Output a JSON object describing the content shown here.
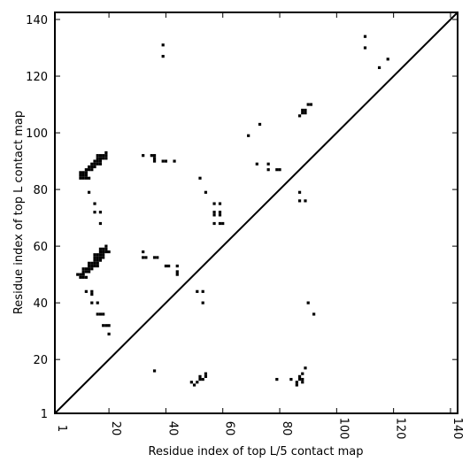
{
  "chart_data": {
    "type": "scatter",
    "title": "",
    "xlabel": "Residue index of top L/5 contact map",
    "ylabel": "Residue index of top L contact map",
    "xlim": [
      1,
      142.5
    ],
    "ylim": [
      1,
      142.5
    ],
    "x_ticks": [
      1,
      20,
      40,
      60,
      80,
      100,
      120,
      140
    ],
    "x_tick_labels": [
      "1",
      "20",
      "40",
      "60",
      "80",
      "100",
      "120",
      "140"
    ],
    "y_ticks": [
      1,
      20,
      40,
      60,
      80,
      100,
      120,
      140
    ],
    "y_tick_labels": [
      "1",
      "20",
      "40",
      "60",
      "80",
      "100",
      "120",
      "140"
    ],
    "grid": false,
    "diagonal": true,
    "marker": "square",
    "marker_color": "#000000",
    "series": [
      {
        "name": "",
        "points": [
          [
            10,
            84
          ],
          [
            10,
            85
          ],
          [
            10,
            86
          ],
          [
            11,
            84
          ],
          [
            11,
            85
          ],
          [
            11,
            86
          ],
          [
            12,
            84
          ],
          [
            12,
            85
          ],
          [
            12,
            86
          ],
          [
            13,
            84
          ],
          [
            12,
            87
          ],
          [
            13,
            87
          ],
          [
            13,
            88
          ],
          [
            14,
            87
          ],
          [
            14,
            88
          ],
          [
            14,
            89
          ],
          [
            15,
            88
          ],
          [
            15,
            89
          ],
          [
            15,
            90
          ],
          [
            16,
            89
          ],
          [
            16,
            90
          ],
          [
            16,
            91
          ],
          [
            16,
            92
          ],
          [
            17,
            89
          ],
          [
            17,
            90
          ],
          [
            17,
            91
          ],
          [
            17,
            92
          ],
          [
            18,
            91
          ],
          [
            18,
            92
          ],
          [
            19,
            91
          ],
          [
            19,
            92
          ],
          [
            19,
            93
          ],
          [
            13,
            79
          ],
          [
            15,
            75
          ],
          [
            15,
            72
          ],
          [
            17,
            72
          ],
          [
            17,
            68
          ],
          [
            9,
            50
          ],
          [
            10,
            49
          ],
          [
            10,
            50
          ],
          [
            11,
            49
          ],
          [
            11,
            50
          ],
          [
            11,
            51
          ],
          [
            11,
            52
          ],
          [
            12,
            49
          ],
          [
            12,
            51
          ],
          [
            12,
            52
          ],
          [
            13,
            51
          ],
          [
            13,
            52
          ],
          [
            13,
            53
          ],
          [
            13,
            54
          ],
          [
            14,
            52
          ],
          [
            14,
            53
          ],
          [
            14,
            54
          ],
          [
            15,
            53
          ],
          [
            15,
            54
          ],
          [
            15,
            55
          ],
          [
            15,
            56
          ],
          [
            15,
            57
          ],
          [
            16,
            53
          ],
          [
            16,
            54
          ],
          [
            16,
            55
          ],
          [
            16,
            56
          ],
          [
            16,
            57
          ],
          [
            17,
            55
          ],
          [
            17,
            56
          ],
          [
            17,
            57
          ],
          [
            17,
            58
          ],
          [
            17,
            59
          ],
          [
            18,
            56
          ],
          [
            18,
            57
          ],
          [
            18,
            58
          ],
          [
            18,
            59
          ],
          [
            19,
            58
          ],
          [
            19,
            59
          ],
          [
            19,
            60
          ],
          [
            20,
            58
          ],
          [
            12,
            44
          ],
          [
            14,
            43
          ],
          [
            14,
            44
          ],
          [
            14,
            40
          ],
          [
            16,
            40
          ],
          [
            16,
            36
          ],
          [
            17,
            36
          ],
          [
            18,
            36
          ],
          [
            18,
            32
          ],
          [
            19,
            32
          ],
          [
            20,
            32
          ],
          [
            20,
            29
          ],
          [
            32,
            92
          ],
          [
            35,
            92
          ],
          [
            36,
            92
          ],
          [
            36,
            91
          ],
          [
            36,
            90
          ],
          [
            39,
            90
          ],
          [
            40,
            90
          ],
          [
            43,
            90
          ],
          [
            32,
            58
          ],
          [
            32,
            56
          ],
          [
            33,
            56
          ],
          [
            36,
            56
          ],
          [
            37,
            56
          ],
          [
            40,
            53
          ],
          [
            41,
            53
          ],
          [
            44,
            53
          ],
          [
            44,
            51
          ],
          [
            44,
            50
          ],
          [
            39,
            131
          ],
          [
            39,
            127
          ],
          [
            36,
            16
          ],
          [
            52,
            84
          ],
          [
            54,
            79
          ],
          [
            57,
            75
          ],
          [
            57,
            72
          ],
          [
            57,
            71
          ],
          [
            57,
            68
          ],
          [
            59,
            75
          ],
          [
            59,
            72
          ],
          [
            59,
            71
          ],
          [
            59,
            68
          ],
          [
            60,
            68
          ],
          [
            51,
            44
          ],
          [
            53,
            44
          ],
          [
            53,
            40
          ],
          [
            49,
            12
          ],
          [
            50,
            11
          ],
          [
            51,
            12
          ],
          [
            52,
            13
          ],
          [
            52,
            14
          ],
          [
            53,
            13
          ],
          [
            54,
            14
          ],
          [
            54,
            15
          ],
          [
            69,
            99
          ],
          [
            72,
            89
          ],
          [
            73,
            103
          ],
          [
            76,
            89
          ],
          [
            76,
            87
          ],
          [
            79,
            87
          ],
          [
            80,
            87
          ],
          [
            79,
            13
          ],
          [
            84,
            13
          ],
          [
            86,
            11
          ],
          [
            86,
            12
          ],
          [
            87,
            13
          ],
          [
            87,
            14
          ],
          [
            88,
            15
          ],
          [
            88,
            12
          ],
          [
            88,
            13
          ],
          [
            89,
            17
          ],
          [
            90,
            40
          ],
          [
            92,
            36
          ],
          [
            87,
            79
          ],
          [
            87,
            76
          ],
          [
            87,
            106
          ],
          [
            88,
            107
          ],
          [
            89,
            107
          ],
          [
            88,
            108
          ],
          [
            89,
            108
          ],
          [
            90,
            110
          ],
          [
            91,
            110
          ],
          [
            89,
            76
          ],
          [
            110,
            134
          ],
          [
            110,
            130
          ],
          [
            115,
            123
          ],
          [
            118,
            126
          ]
        ]
      }
    ]
  }
}
